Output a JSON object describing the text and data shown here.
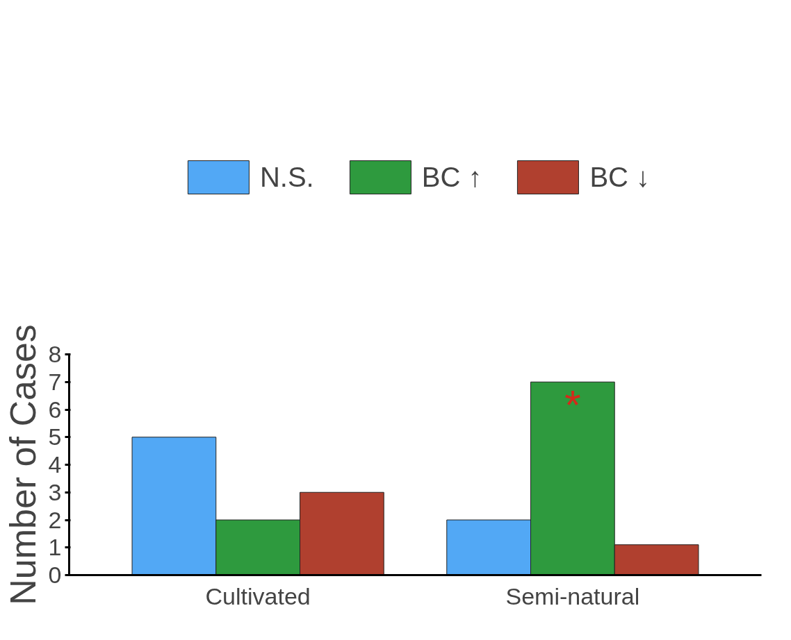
{
  "chart_data": {
    "type": "bar",
    "ylabel": "Number of Cases",
    "categories": [
      "Cultivated",
      "Semi-natural"
    ],
    "series": [
      {
        "name": "N.S.",
        "color": "#52a8f5",
        "values": [
          5,
          2
        ]
      },
      {
        "name": "BC ↑",
        "color": "#2e9a3e",
        "values": [
          2,
          7
        ]
      },
      {
        "name": "BC ↓",
        "color": "#b0402f",
        "values": [
          3,
          1.1
        ]
      }
    ],
    "ylim": [
      0,
      8
    ],
    "yticks": [
      0,
      1,
      2,
      3,
      4,
      5,
      6,
      7,
      8
    ],
    "grid": false,
    "legend": "top",
    "annotations": [
      {
        "text": "*",
        "x": "Semi-natural",
        "y": 7
      }
    ]
  }
}
